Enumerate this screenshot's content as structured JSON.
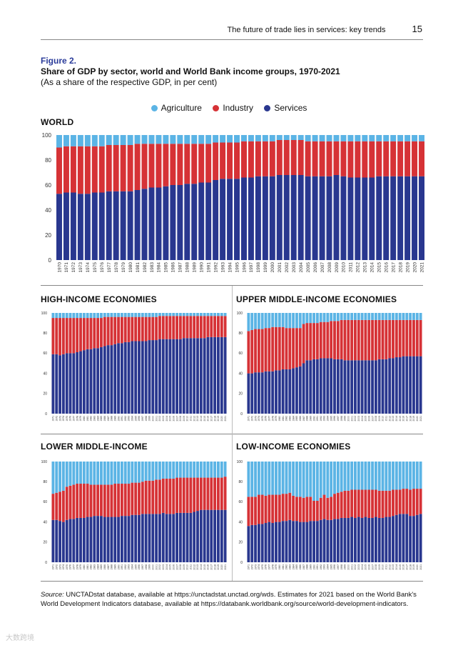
{
  "header": {
    "running_title": "The future of trade lies in services: key trends",
    "page_number": "15"
  },
  "figure": {
    "label": "Figure 2.",
    "title": "Share of GDP by sector, world and World Bank income groups, 1970-2021",
    "subtitle": "(As a share of the respective GDP, in per cent)"
  },
  "legend": [
    {
      "name": "Agriculture",
      "color": "#5bb4e5"
    },
    {
      "name": "Industry",
      "color": "#d63236"
    },
    {
      "name": "Services",
      "color": "#29378f"
    }
  ],
  "source": {
    "label": "Source:",
    "text": "UNCTADstat database, available at https://unctadstat.unctad.org/wds. Estimates for 2021 based on the World Bank's World Development Indicators database, available at https://databank.worldbank.org/source/world-development-indicators."
  },
  "watermark": "大数跨境",
  "chart_data": [
    {
      "type": "bar",
      "stacked": true,
      "title": "WORLD",
      "categories": [
        "1970",
        "1971",
        "1972",
        "1973",
        "1974",
        "1975",
        "1976",
        "1977",
        "1978",
        "1979",
        "1980",
        "1981",
        "1982",
        "1983",
        "1984",
        "1985",
        "1986",
        "1987",
        "1988",
        "1989",
        "1990",
        "1991",
        "1992",
        "1993",
        "1994",
        "1995",
        "1996",
        "1997",
        "1998",
        "1999",
        "2000",
        "2001",
        "2002",
        "2003",
        "2004",
        "2005",
        "2006",
        "2007",
        "2008",
        "2009",
        "2010",
        "2011",
        "2012",
        "2013",
        "2014",
        "2015",
        "2016",
        "2017",
        "2018",
        "2019",
        "2020",
        "2021"
      ],
      "ylim": [
        0,
        100
      ],
      "yticks": [
        "0",
        "20",
        "40",
        "60",
        "80",
        "100"
      ],
      "series": [
        {
          "name": "Services",
          "values": [
            53,
            54,
            54,
            53,
            53,
            54,
            54,
            55,
            55,
            55,
            55,
            56,
            57,
            58,
            58,
            59,
            60,
            60,
            61,
            61,
            62,
            62,
            64,
            65,
            65,
            65,
            66,
            66,
            67,
            67,
            67,
            68,
            68,
            68,
            68,
            67,
            67,
            67,
            67,
            68,
            67,
            66,
            66,
            66,
            66,
            67,
            67,
            67,
            67,
            67,
            67,
            67
          ]
        },
        {
          "name": "Industry",
          "values": [
            37,
            37,
            37,
            38,
            38,
            37,
            37,
            37,
            37,
            37,
            37,
            37,
            36,
            35,
            35,
            34,
            33,
            33,
            32,
            32,
            31,
            31,
            30,
            29,
            29,
            29,
            29,
            29,
            28,
            28,
            28,
            28,
            28,
            28,
            28,
            28,
            28,
            28,
            28,
            27,
            28,
            29,
            29,
            29,
            29,
            28,
            28,
            28,
            28,
            28,
            28,
            28
          ]
        },
        {
          "name": "Agriculture",
          "values": [
            10,
            9,
            9,
            9,
            9,
            9,
            9,
            8,
            8,
            8,
            8,
            7,
            7,
            7,
            7,
            7,
            7,
            7,
            7,
            7,
            7,
            7,
            6,
            6,
            6,
            6,
            5,
            5,
            5,
            5,
            5,
            4,
            4,
            4,
            4,
            5,
            5,
            5,
            5,
            5,
            5,
            5,
            5,
            5,
            5,
            5,
            5,
            5,
            5,
            5,
            5,
            5
          ]
        }
      ]
    },
    {
      "type": "bar",
      "stacked": true,
      "title": "HIGH-INCOME ECONOMIES",
      "categories": [
        "1971",
        "1972",
        "1973",
        "1974",
        "1975",
        "1976",
        "1977",
        "1978",
        "1979",
        "1980",
        "1981",
        "1982",
        "1983",
        "1984",
        "1985",
        "1986",
        "1987",
        "1988",
        "1989",
        "1990",
        "1991",
        "1992",
        "1993",
        "1994",
        "1995",
        "1996",
        "1997",
        "1998",
        "1999",
        "2000",
        "2001",
        "2002",
        "2003",
        "2004",
        "2005",
        "2006",
        "2007",
        "2008",
        "2009",
        "2010",
        "2011",
        "2012",
        "2013",
        "2014",
        "2015",
        "2016",
        "2017",
        "2018",
        "2019",
        "2020",
        "2021"
      ],
      "ylim": [
        0,
        100
      ],
      "yticks": [
        "0",
        "20",
        "40",
        "60",
        "80",
        "100"
      ],
      "series": [
        {
          "name": "Services",
          "values": [
            59,
            59,
            58,
            59,
            60,
            60,
            60,
            61,
            62,
            63,
            64,
            64,
            65,
            65,
            66,
            67,
            68,
            68,
            69,
            70,
            70,
            71,
            71,
            72,
            72,
            72,
            72,
            72,
            73,
            73,
            73,
            74,
            74,
            74,
            74,
            74,
            74,
            74,
            75,
            75,
            75,
            75,
            75,
            75,
            75,
            76,
            76,
            76,
            76,
            76,
            76
          ]
        },
        {
          "name": "Industry",
          "values": [
            36,
            36,
            37,
            36,
            35,
            35,
            35,
            34,
            33,
            32,
            31,
            31,
            30,
            30,
            29,
            29,
            28,
            28,
            27,
            26,
            26,
            25,
            25,
            24,
            24,
            24,
            24,
            24,
            23,
            23,
            23,
            23,
            23,
            23,
            23,
            23,
            23,
            23,
            22,
            22,
            22,
            22,
            22,
            22,
            22,
            21,
            21,
            21,
            21,
            21,
            21
          ]
        },
        {
          "name": "Agriculture",
          "values": [
            5,
            5,
            5,
            5,
            5,
            5,
            5,
            5,
            5,
            5,
            5,
            5,
            5,
            5,
            5,
            4,
            4,
            4,
            4,
            4,
            4,
            4,
            4,
            4,
            4,
            4,
            4,
            4,
            4,
            4,
            4,
            3,
            3,
            3,
            3,
            3,
            3,
            3,
            3,
            3,
            3,
            3,
            3,
            3,
            3,
            3,
            3,
            3,
            3,
            3,
            3
          ]
        }
      ]
    },
    {
      "type": "bar",
      "stacked": true,
      "title": "UPPER MIDDLE-INCOME ECONOMIES",
      "categories": [
        "1971",
        "1972",
        "1973",
        "1974",
        "1975",
        "1976",
        "1977",
        "1978",
        "1979",
        "1980",
        "1981",
        "1982",
        "1983",
        "1984",
        "1985",
        "1986",
        "1987",
        "1988",
        "1989",
        "1990",
        "1991",
        "1992",
        "1993",
        "1994",
        "1995",
        "1996",
        "1997",
        "1998",
        "1999",
        "2000",
        "2001",
        "2002",
        "2003",
        "2004",
        "2005",
        "2006",
        "2007",
        "2008",
        "2009",
        "2010",
        "2011",
        "2012",
        "2013",
        "2014",
        "2015",
        "2016",
        "2017",
        "2018",
        "2019",
        "2020",
        "2021"
      ],
      "ylim": [
        0,
        100
      ],
      "yticks": [
        "0",
        "20",
        "40",
        "60",
        "80",
        "100"
      ],
      "series": [
        {
          "name": "Services",
          "values": [
            40,
            40,
            41,
            41,
            41,
            42,
            42,
            42,
            43,
            43,
            44,
            44,
            44,
            45,
            46,
            47,
            50,
            53,
            53,
            54,
            54,
            55,
            55,
            55,
            55,
            54,
            54,
            54,
            53,
            53,
            53,
            53,
            53,
            53,
            53,
            53,
            53,
            53,
            54,
            54,
            54,
            55,
            55,
            56,
            56,
            57,
            57,
            57,
            57,
            57,
            57
          ]
        },
        {
          "name": "Industry",
          "values": [
            42,
            43,
            43,
            43,
            43,
            43,
            43,
            44,
            43,
            43,
            42,
            41,
            41,
            40,
            39,
            38,
            39,
            37,
            37,
            36,
            36,
            36,
            36,
            36,
            37,
            38,
            38,
            39,
            40,
            40,
            40,
            40,
            40,
            40,
            40,
            40,
            40,
            40,
            39,
            39,
            39,
            38,
            38,
            37,
            37,
            36,
            36,
            36,
            36,
            36,
            36
          ]
        },
        {
          "name": "Agriculture",
          "values": [
            18,
            17,
            16,
            16,
            16,
            15,
            15,
            14,
            14,
            14,
            14,
            15,
            15,
            15,
            15,
            15,
            11,
            10,
            10,
            10,
            10,
            9,
            9,
            9,
            8,
            8,
            8,
            7,
            7,
            7,
            7,
            7,
            7,
            7,
            7,
            7,
            7,
            7,
            7,
            7,
            7,
            7,
            7,
            7,
            7,
            7,
            7,
            7,
            7,
            7,
            7
          ]
        }
      ]
    },
    {
      "type": "bar",
      "stacked": true,
      "title": "LOWER MIDDLE-INCOME",
      "categories": [
        "1971",
        "1972",
        "1973",
        "1974",
        "1975",
        "1976",
        "1977",
        "1978",
        "1979",
        "1980",
        "1981",
        "1982",
        "1983",
        "1984",
        "1985",
        "1986",
        "1987",
        "1988",
        "1989",
        "1990",
        "1991",
        "1992",
        "1993",
        "1994",
        "1995",
        "1996",
        "1997",
        "1998",
        "1999",
        "2000",
        "2001",
        "2002",
        "2003",
        "2004",
        "2005",
        "2006",
        "2007",
        "2008",
        "2009",
        "2010",
        "2011",
        "2012",
        "2013",
        "2014",
        "2015",
        "2016",
        "2017",
        "2018",
        "2019",
        "2020",
        "2021"
      ],
      "ylim": [
        0,
        100
      ],
      "yticks": [
        "0",
        "20",
        "40",
        "60",
        "80",
        "100"
      ],
      "series": [
        {
          "name": "Services",
          "values": [
            42,
            42,
            41,
            40,
            42,
            43,
            43,
            44,
            44,
            44,
            45,
            45,
            46,
            46,
            46,
            45,
            45,
            45,
            45,
            45,
            46,
            46,
            46,
            47,
            47,
            47,
            48,
            48,
            48,
            48,
            48,
            48,
            49,
            48,
            48,
            48,
            49,
            49,
            49,
            49,
            49,
            50,
            51,
            52,
            52,
            52,
            52,
            52,
            52,
            52,
            52
          ]
        },
        {
          "name": "Industry",
          "values": [
            26,
            27,
            29,
            31,
            33,
            33,
            34,
            34,
            34,
            34,
            33,
            32,
            31,
            31,
            31,
            32,
            32,
            32,
            33,
            33,
            32,
            32,
            32,
            32,
            32,
            32,
            32,
            33,
            33,
            33,
            34,
            34,
            34,
            35,
            35,
            35,
            35,
            35,
            35,
            35,
            35,
            34,
            33,
            32,
            32,
            32,
            32,
            32,
            32,
            32,
            33
          ]
        },
        {
          "name": "Agriculture",
          "values": [
            32,
            31,
            30,
            29,
            25,
            24,
            23,
            22,
            22,
            22,
            22,
            23,
            23,
            23,
            23,
            23,
            23,
            23,
            22,
            22,
            22,
            22,
            22,
            21,
            21,
            21,
            20,
            19,
            19,
            19,
            18,
            18,
            17,
            17,
            17,
            17,
            16,
            16,
            16,
            16,
            16,
            16,
            16,
            16,
            16,
            16,
            16,
            16,
            16,
            16,
            15
          ]
        }
      ]
    },
    {
      "type": "bar",
      "stacked": true,
      "title": "LOW-INCOME ECONOMIES",
      "categories": [
        "1971",
        "1972",
        "1973",
        "1974",
        "1975",
        "1976",
        "1977",
        "1978",
        "1979",
        "1980",
        "1981",
        "1982",
        "1983",
        "1984",
        "1985",
        "1986",
        "1987",
        "1988",
        "1989",
        "1990",
        "1991",
        "1992",
        "1993",
        "1994",
        "1995",
        "1996",
        "1997",
        "1998",
        "1999",
        "2000",
        "2001",
        "2002",
        "2003",
        "2004",
        "2005",
        "2006",
        "2007",
        "2008",
        "2009",
        "2010",
        "2011",
        "2012",
        "2013",
        "2014",
        "2015",
        "2016",
        "2017",
        "2018",
        "2019",
        "2020",
        "2021"
      ],
      "ylim": [
        0,
        100
      ],
      "yticks": [
        "0",
        "20",
        "40",
        "60",
        "80",
        "100"
      ],
      "series": [
        {
          "name": "Services",
          "values": [
            36,
            37,
            37,
            38,
            38,
            39,
            40,
            39,
            40,
            40,
            41,
            41,
            42,
            41,
            41,
            40,
            40,
            40,
            41,
            41,
            41,
            42,
            43,
            42,
            42,
            43,
            43,
            44,
            44,
            44,
            45,
            44,
            45,
            44,
            45,
            44,
            44,
            45,
            44,
            44,
            45,
            45,
            46,
            47,
            48,
            48,
            48,
            46,
            46,
            47,
            48
          ]
        },
        {
          "name": "Industry",
          "values": [
            29,
            28,
            28,
            29,
            29,
            27,
            27,
            28,
            27,
            27,
            27,
            27,
            27,
            25,
            24,
            25,
            24,
            25,
            24,
            20,
            20,
            22,
            24,
            22,
            23,
            25,
            26,
            26,
            27,
            27,
            27,
            28,
            27,
            28,
            27,
            28,
            28,
            27,
            27,
            27,
            26,
            26,
            26,
            25,
            24,
            25,
            25,
            26,
            27,
            26,
            25
          ]
        },
        {
          "name": "Agriculture",
          "values": [
            35,
            35,
            35,
            33,
            33,
            34,
            33,
            33,
            33,
            33,
            32,
            32,
            31,
            34,
            35,
            35,
            36,
            35,
            35,
            39,
            39,
            36,
            33,
            36,
            35,
            32,
            31,
            30,
            29,
            29,
            28,
            28,
            28,
            28,
            28,
            28,
            28,
            28,
            29,
            29,
            29,
            29,
            28,
            28,
            28,
            27,
            27,
            28,
            27,
            27,
            27
          ]
        }
      ]
    }
  ]
}
